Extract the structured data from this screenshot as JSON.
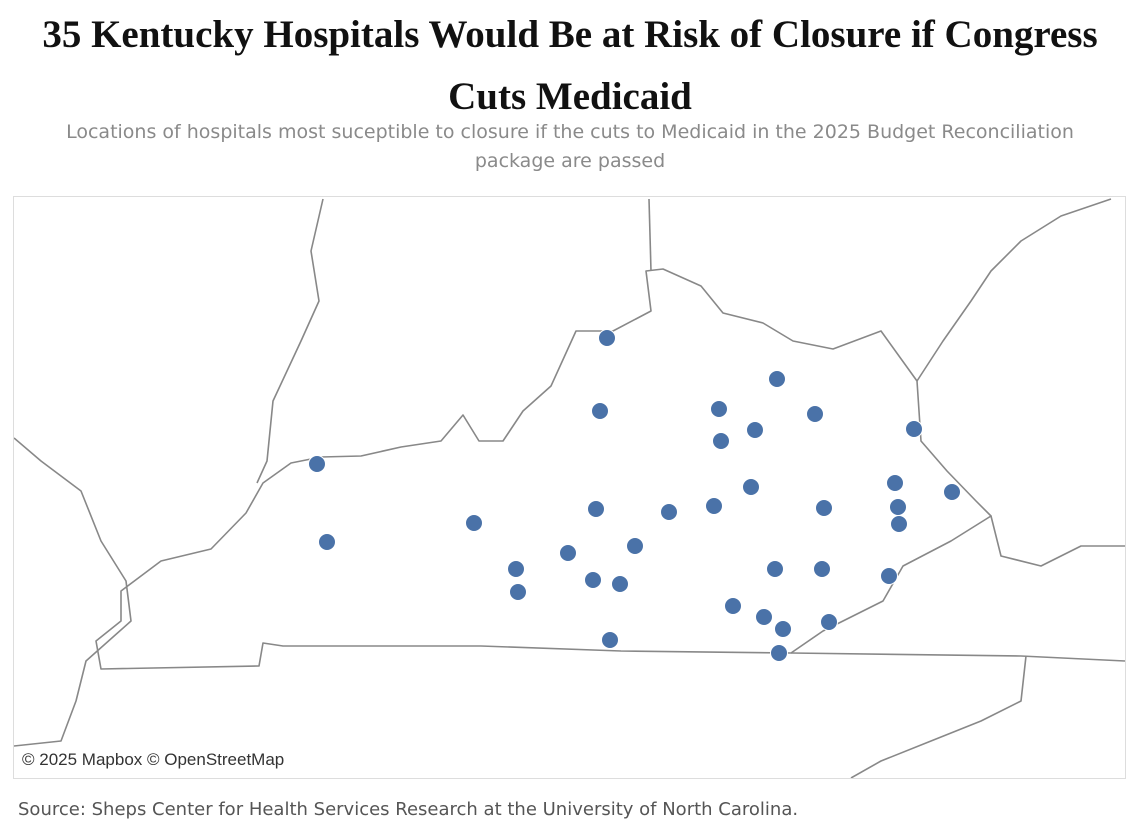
{
  "header": {
    "title": "35 Kentucky Hospitals Would Be at Risk of Closure if Congress Cuts Medicaid",
    "subtitle": "Locations of hospitals most suceptible to closure if the cuts to Medicaid in the 2025 Budget Reconciliation package are passed"
  },
  "map": {
    "attribution": "© 2025 Mapbox © OpenStreetMap"
  },
  "footer": {
    "source": "Source: Sheps Center for Health Services Research at the University of North Carolina."
  }
}
